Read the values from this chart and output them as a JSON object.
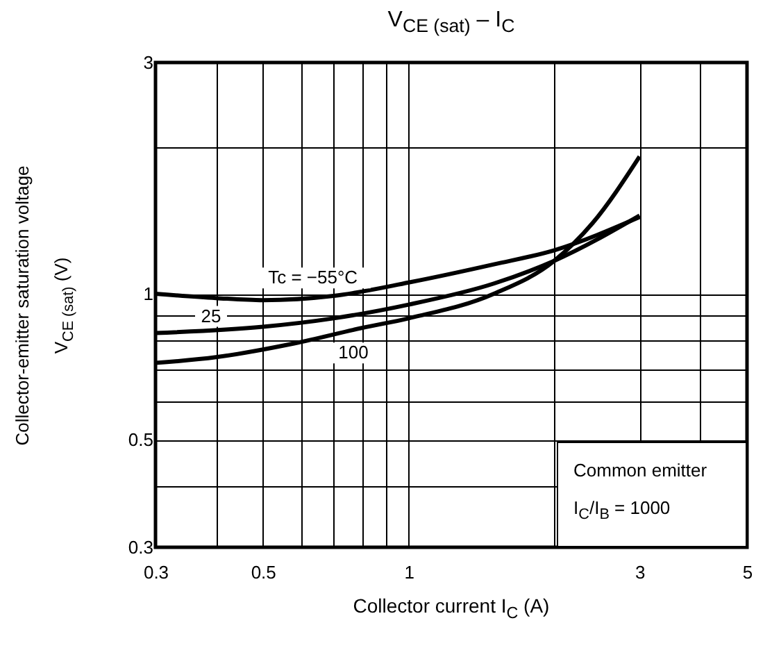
{
  "chart_data": {
    "type": "line",
    "title": "V$_{CE (sat)}$ – I$_{C}$",
    "xlabel": "Collector current   I$_{C}$   (A)",
    "ylabel": "Collector-emitter saturation voltage\nV$_{CE (sat)}$   (V)",
    "log": "xy",
    "grid": true,
    "xlim": [
      0.3,
      5
    ],
    "ylim": [
      0.3,
      3
    ],
    "xticks": [
      0.3,
      {
        "value": 0.4,
        "label": null
      },
      0.5,
      {
        "value": 0.6,
        "label": null
      },
      {
        "value": 0.7,
        "label": null
      },
      {
        "value": 0.8,
        "label": null
      },
      {
        "value": 0.9,
        "label": null
      },
      1,
      {
        "value": 2,
        "label": null
      },
      3,
      {
        "value": 4,
        "label": null
      },
      5
    ],
    "yticks": [
      0.3,
      {
        "value": 0.4,
        "label": null
      },
      0.5,
      {
        "value": 0.6,
        "label": null
      },
      {
        "value": 0.7,
        "label": null
      },
      {
        "value": 0.8,
        "label": null
      },
      {
        "value": 0.9,
        "label": null
      },
      1,
      {
        "value": 2,
        "label": null
      },
      3
    ],
    "series": [
      {
        "name": "Tc = −55°C",
        "color": "#000000",
        "x": [
          0.3,
          0.4,
          0.5,
          0.7,
          1,
          1.5,
          2,
          3
        ],
        "values": [
          1.0,
          0.98,
          0.97,
          0.99,
          1.055,
          1.15,
          1.23,
          1.44
        ]
      },
      {
        "name": "25",
        "color": "#000000",
        "x": [
          0.3,
          0.5,
          0.7,
          1,
          1.5,
          2,
          3
        ],
        "values": [
          0.83,
          0.855,
          0.89,
          0.95,
          1.05,
          1.17,
          1.45
        ]
      },
      {
        "name": "100",
        "color": "#000000",
        "x": [
          0.3,
          0.4,
          0.58,
          0.8,
          1,
          1.5,
          2,
          2.4,
          3
        ],
        "values": [
          0.72,
          0.74,
          0.79,
          0.85,
          0.89,
          1.0,
          1.17,
          1.4,
          1.92
        ]
      }
    ],
    "annotations": [
      "Common emitter",
      "I$_{C}$/I$_{B}$ = 1000"
    ]
  }
}
